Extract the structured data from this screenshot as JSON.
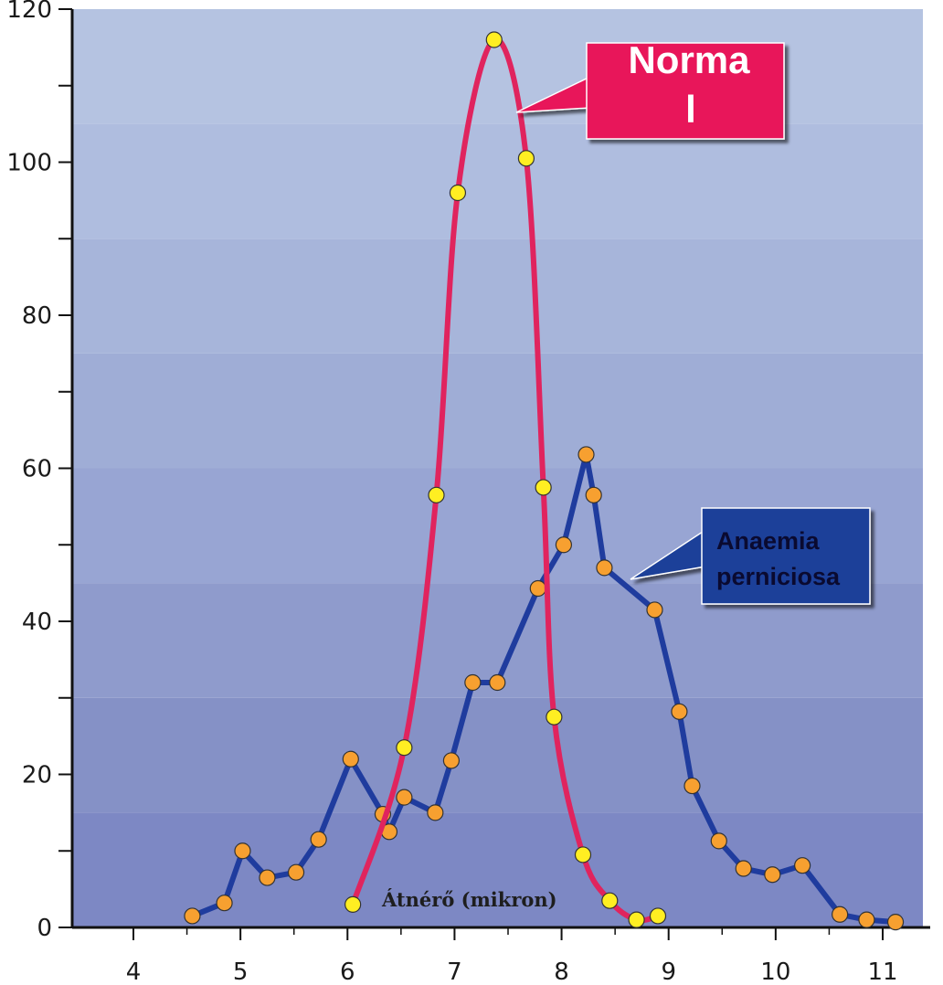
{
  "chart_data": {
    "type": "line",
    "xlabel": "Átnérő (mikron)",
    "ylabel": "",
    "title": "",
    "xlim": [
      3.6,
      11.5
    ],
    "ylim": [
      0,
      120
    ],
    "x_ticks": [
      4,
      5,
      6,
      7,
      8,
      9,
      10,
      11
    ],
    "x_tick_labels": [
      "4",
      "5",
      "6",
      "7",
      "8",
      "9",
      "10",
      "11"
    ],
    "y_major_ticks": [
      0,
      20,
      40,
      60,
      80,
      100,
      120
    ],
    "y_tick_labels": [
      "0",
      "20",
      "40",
      "60",
      "80",
      "100",
      "120"
    ],
    "y_minor_ticks": [
      10,
      30,
      50,
      70,
      90,
      110
    ],
    "band_colors": [
      "#7d88c4",
      "#8591c6",
      "#8f9bcc",
      "#98a5d3",
      "#9fadd6",
      "#a7b5da",
      "#afbddf",
      "#b5c3e1"
    ],
    "series": [
      {
        "name": "Normal",
        "color": "#e0245e",
        "marker_color": "#ffee22",
        "x": [
          6.05,
          6.53,
          6.83,
          7.03,
          7.37,
          7.67,
          7.83,
          7.93,
          8.2,
          8.45,
          8.7,
          8.9
        ],
        "values": [
          3,
          23.5,
          56.5,
          96,
          116,
          100.5,
          57.5,
          27.5,
          9.5,
          3.5,
          1,
          1.5
        ]
      },
      {
        "name": "Anaemia perniciosa",
        "color": "#1f3c9e",
        "marker_color": "#f7a030",
        "x": [
          4.55,
          4.85,
          5.02,
          5.25,
          5.52,
          5.73,
          6.03,
          6.33,
          6.39,
          6.53,
          6.82,
          6.97,
          7.17,
          7.4,
          7.78,
          8.02,
          8.23,
          8.3,
          8.4,
          8.87,
          9.1,
          9.22,
          9.47,
          9.7,
          9.97,
          10.25,
          10.6,
          10.85,
          11.12
        ],
        "values": [
          1.5,
          3.2,
          10,
          6.5,
          7.2,
          11.5,
          22,
          14.8,
          12.5,
          17,
          15,
          21.8,
          32,
          32,
          44.3,
          50,
          61.8,
          56.5,
          47,
          41.5,
          28.2,
          18.5,
          11.3,
          7.7,
          6.9,
          8.1,
          1.7,
          1,
          0.7
        ]
      }
    ]
  },
  "callouts": {
    "normal_label_line1": "Norma",
    "normal_label_line2": "l",
    "normal_color": "#e8145a",
    "anaemia_label_line1": "Anaemia",
    "anaemia_label_line2": "perniciosa",
    "anaemia_color": "#1d3f99"
  }
}
